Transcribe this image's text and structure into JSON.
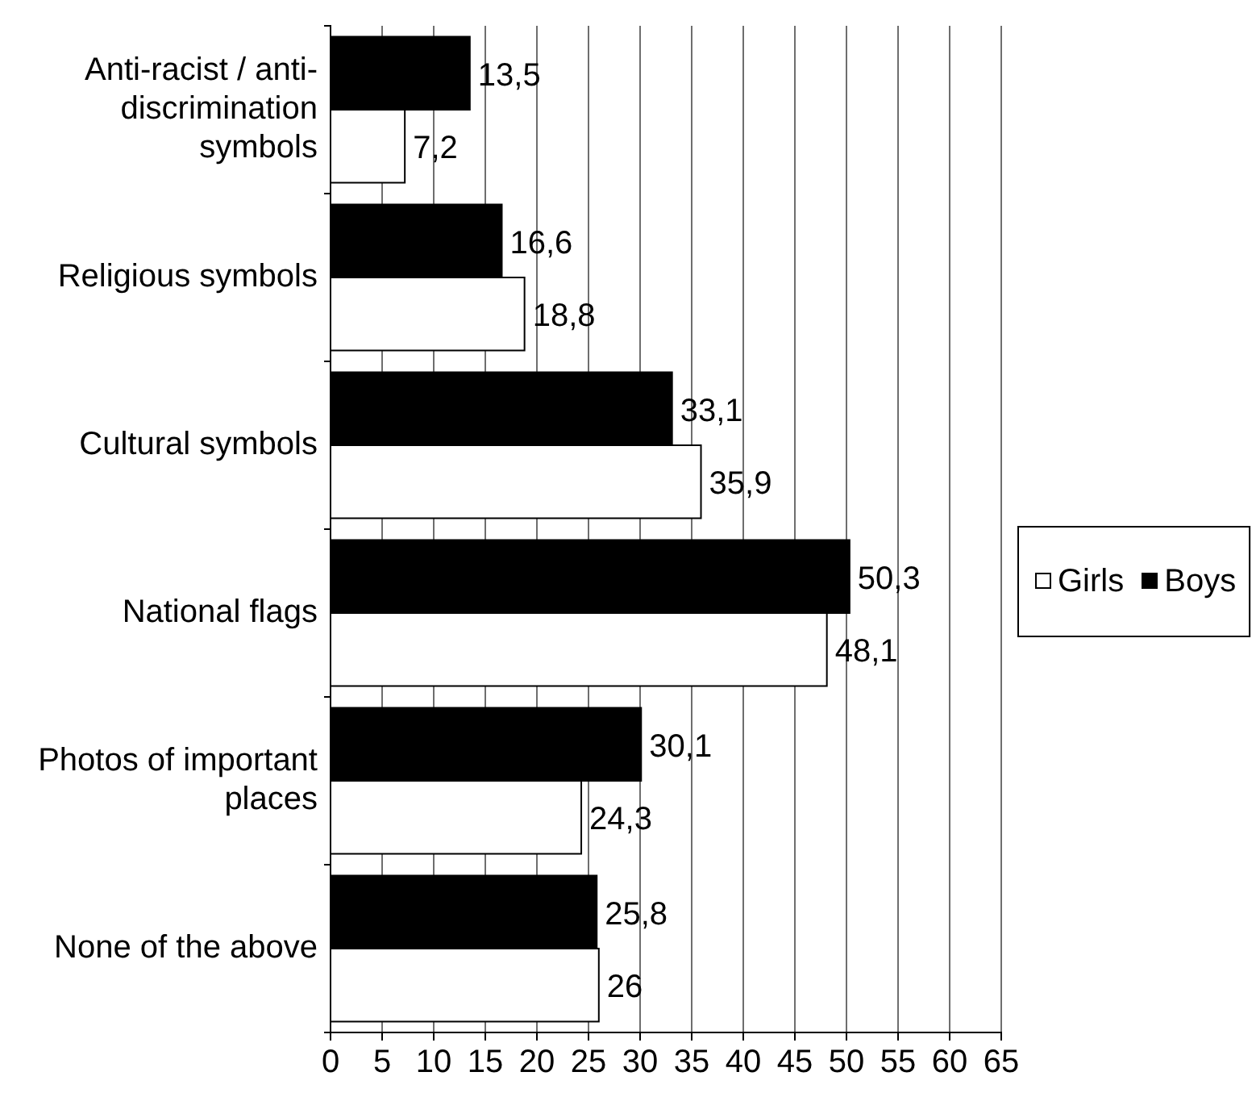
{
  "chart_data": {
    "type": "bar",
    "orientation": "horizontal",
    "categories": [
      "Anti-racist / anti-discrimination symbols",
      "Religious symbols",
      "Cultural symbols",
      "National flags",
      "Photos of important places",
      "None of the above"
    ],
    "series": [
      {
        "name": "Girls",
        "color": "#ffffff",
        "values": [
          7.2,
          18.8,
          35.9,
          48.1,
          24.3,
          26
        ],
        "value_labels": [
          "7,2",
          "18,8",
          "35,9",
          "48,1",
          "24,3",
          "26"
        ]
      },
      {
        "name": "Boys",
        "color": "#000000",
        "values": [
          13.5,
          16.6,
          33.1,
          50.3,
          30.1,
          25.8
        ],
        "value_labels": [
          "13,5",
          "16,6",
          "33,1",
          "50,3",
          "30,1",
          "25,8"
        ]
      }
    ],
    "xlim": [
      0,
      65
    ],
    "xticks": [
      0,
      5,
      10,
      15,
      20,
      25,
      30,
      35,
      40,
      45,
      50,
      55,
      60,
      65
    ],
    "grid": "x",
    "legend": "right"
  }
}
